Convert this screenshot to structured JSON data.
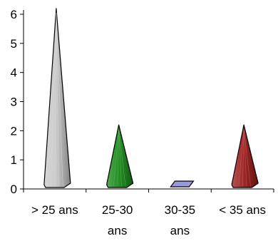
{
  "chart_data": {
    "type": "bar",
    "subtype": "3d-cone",
    "title": "",
    "xlabel": "",
    "ylabel": "",
    "categories": [
      {
        "line1": "> 25 ans",
        "line2": ""
      },
      {
        "line1": "25-30",
        "line2": "ans"
      },
      {
        "line1": "30-35",
        "line2": "ans"
      },
      {
        "line1": "< 35 ans",
        "line2": ""
      }
    ],
    "values": [
      6.2,
      2.2,
      0.2,
      2.2
    ],
    "colors": [
      "#c8c8c8",
      "#1a8a1a",
      "#8b8fd8",
      "#9b1c1c"
    ],
    "ylim": [
      0,
      6
    ],
    "yticks": [
      "0",
      "1",
      "2",
      "3",
      "4",
      "5",
      "6"
    ],
    "grid": false,
    "legend": "none"
  }
}
